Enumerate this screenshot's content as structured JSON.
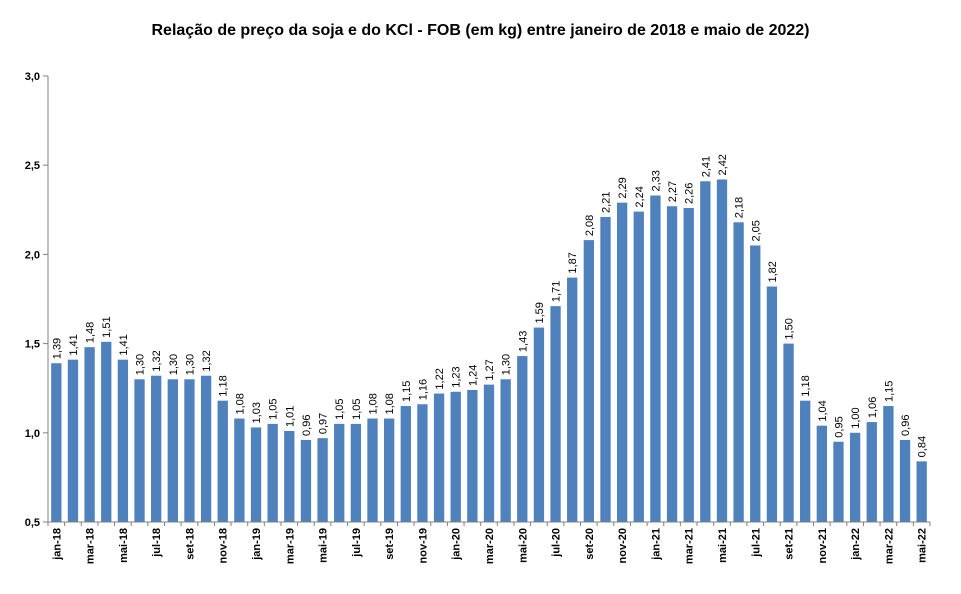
{
  "chart_data": {
    "type": "bar",
    "title": "Relação de preço da soja e do KCl - FOB (em kg) entre janeiro de 2018 e maio de 2022)",
    "xlabel": "",
    "ylabel": "",
    "ylim": [
      0.5,
      3.0
    ],
    "yticks": [
      "0,5",
      "1,0",
      "1,5",
      "2,0",
      "2,5",
      "3,0"
    ],
    "ytick_values": [
      0.5,
      1.0,
      1.5,
      2.0,
      2.5,
      3.0
    ],
    "grid": false,
    "legend": "none",
    "bar_color": "#4F81BD",
    "categories": [
      "jan-18",
      "fev-18",
      "mar-18",
      "abr-18",
      "mai-18",
      "jun-18",
      "jul-18",
      "ago-18",
      "set-18",
      "out-18",
      "nov-18",
      "dez-18",
      "jan-19",
      "fev-19",
      "mar-19",
      "abr-19",
      "mai-19",
      "jun-19",
      "jul-19",
      "ago-19",
      "set-19",
      "out-19",
      "nov-19",
      "dez-19",
      "jan-20",
      "fev-20",
      "mar-20",
      "abr-20",
      "mai-20",
      "jun-20",
      "jul-20",
      "ago-20",
      "set-20",
      "out-20",
      "nov-20",
      "dez-20",
      "jan-21",
      "fev-21",
      "mar-21",
      "abr-21",
      "mai-21",
      "jun-21",
      "jul-21",
      "ago-21",
      "set-21",
      "out-21",
      "nov-21",
      "dez-21",
      "jan-22",
      "fev-22",
      "mar-22",
      "abr-22",
      "mai-22"
    ],
    "shown_tick_labels": [
      "jan-18",
      "mar-18",
      "mai-18",
      "jul-18",
      "set-18",
      "nov-18",
      "jan-19",
      "mar-19",
      "mai-19",
      "jul-19",
      "set-19",
      "nov-19",
      "jan-20",
      "mar-20",
      "mai-20",
      "jul-20",
      "set-20",
      "nov-20",
      "jan-21",
      "mar-21",
      "mai-21",
      "jul-21",
      "set-21",
      "nov-21",
      "jan-22",
      "mar-22",
      "mai-22"
    ],
    "values": [
      1.39,
      1.41,
      1.48,
      1.51,
      1.41,
      1.3,
      1.32,
      1.3,
      1.3,
      1.32,
      1.18,
      1.08,
      1.03,
      1.05,
      1.01,
      0.96,
      0.97,
      1.05,
      1.05,
      1.08,
      1.08,
      1.15,
      1.16,
      1.22,
      1.23,
      1.24,
      1.27,
      1.3,
      1.43,
      1.59,
      1.71,
      1.87,
      2.08,
      2.21,
      2.29,
      2.24,
      2.33,
      2.27,
      2.26,
      2.41,
      2.42,
      2.18,
      2.05,
      1.82,
      1.5,
      1.18,
      1.04,
      0.95,
      1.0,
      1.06,
      1.15,
      0.96,
      0.84
    ],
    "value_labels": [
      "1,39",
      "1,41",
      "1,48",
      "1,51",
      "1,41",
      "1,30",
      "1,32",
      "1,30",
      "1,30",
      "1,32",
      "1,18",
      "1,08",
      "1,03",
      "1,05",
      "1,01",
      "0,96",
      "0,97",
      "1,05",
      "1,05",
      "1,08",
      "1,08",
      "1,15",
      "1,16",
      "1,22",
      "1,23",
      "1,24",
      "1,27",
      "1,30",
      "1,43",
      "1,59",
      "1,71",
      "1,87",
      "2,08",
      "2,21",
      "2,29",
      "2,24",
      "2,33",
      "2,27",
      "2,26",
      "2,41",
      "2,42",
      "2,18",
      "2,05",
      "1,82",
      "1,50",
      "1,18",
      "1,04",
      "0,95",
      "1,00",
      "1,06",
      "1,15",
      "0,96",
      "0,84"
    ]
  }
}
